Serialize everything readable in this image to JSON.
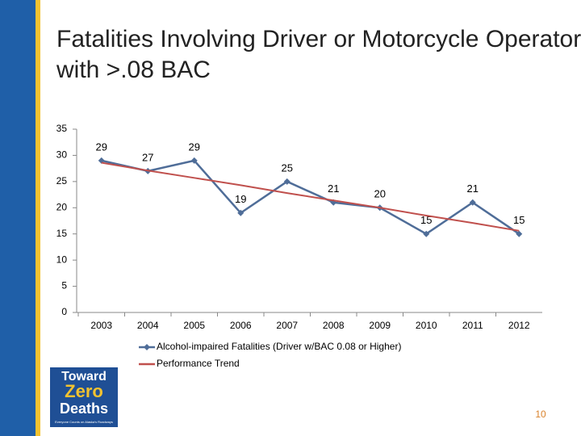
{
  "chart_data": {
    "type": "line",
    "title": "Fatalities Involving Driver or Motorcycle Operator with >.08 BAC",
    "categories": [
      "2003",
      "2004",
      "2005",
      "2006",
      "2007",
      "2008",
      "2009",
      "2010",
      "2011",
      "2012"
    ],
    "series": [
      {
        "name": "Alcohol-impaired Fatalities  (Driver w/BAC 0.08 or Higher)",
        "color": "#4f6d98",
        "values": [
          29,
          27,
          29,
          19,
          25,
          21,
          20,
          15,
          21,
          15
        ],
        "labels": true
      },
      {
        "name": "Performance Trend",
        "color": "#c0504d",
        "values": [
          28.6,
          27.1,
          25.7,
          24.3,
          22.8,
          21.4,
          20.0,
          18.5,
          17.1,
          15.6
        ],
        "labels": false
      }
    ],
    "ylim": [
      0,
      35
    ],
    "yticks": [
      0,
      5,
      10,
      15,
      20,
      25,
      30,
      35
    ],
    "legend": "bottom"
  },
  "logo": {
    "line1": "Toward",
    "line2": "Zero",
    "line3": "Deaths",
    "tagline": "Everyone Counts on Alaska's Roadways"
  },
  "page_number": "10"
}
